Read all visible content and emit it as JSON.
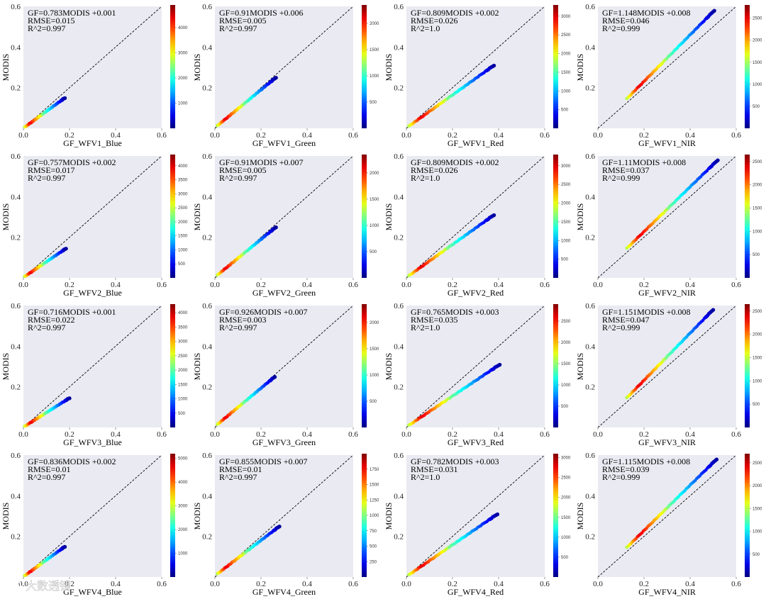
{
  "chart_data": [
    {
      "type": "scatter",
      "xlabel": "GF_WFV1_Blue",
      "ylabel": "MODIS",
      "xlim": [
        0,
        0.6
      ],
      "ylim": [
        0,
        0.6
      ],
      "xticks": [
        "0.0",
        "0.2",
        "0.4",
        "0.6"
      ],
      "yticks": [
        "0.2",
        "0.4",
        "0.6"
      ],
      "annotation": [
        "GF=0.783MODIS +0.001",
        "RMSE=0.015",
        "R^2=0.997"
      ],
      "fit": {
        "x_start": 0.005,
        "x_end": 0.18,
        "y_start": 0.005,
        "y_end": 0.15
      },
      "colorbar": {
        "ticks": [
          1000,
          2000,
          3000,
          4000
        ],
        "max": 4900
      }
    },
    {
      "type": "scatter",
      "xlabel": "GF_WFV1_Green",
      "ylabel": "MODIS",
      "xlim": [
        0,
        0.6
      ],
      "ylim": [
        0,
        0.6
      ],
      "xticks": [
        "0.0",
        "0.2",
        "0.4",
        "0.6"
      ],
      "yticks": [
        "0.2",
        "0.4",
        "0.6"
      ],
      "annotation": [
        "GF=0.91MODIS +0.006",
        "RMSE=0.005",
        "R^2=0.997"
      ],
      "fit": {
        "x_start": 0.01,
        "x_end": 0.265,
        "y_start": 0.012,
        "y_end": 0.25
      },
      "colorbar": {
        "ticks": [
          500,
          1000,
          1500,
          2000
        ],
        "max": 2350
      }
    },
    {
      "type": "scatter",
      "xlabel": "GF_WFV1_Red",
      "ylabel": "MODIS",
      "xlim": [
        0,
        0.6
      ],
      "ylim": [
        0,
        0.6
      ],
      "xticks": [
        "0.0",
        "0.2",
        "0.4",
        "0.6"
      ],
      "yticks": [
        "0.2",
        "0.4",
        "0.6"
      ],
      "annotation": [
        "GF=0.809MODIS +0.002",
        "RMSE=0.026",
        "R^2=1.0"
      ],
      "fit": {
        "x_start": 0.01,
        "x_end": 0.38,
        "y_start": 0.01,
        "y_end": 0.31
      },
      "colorbar": {
        "ticks": [
          500,
          1000,
          1500,
          2000,
          2500,
          3000
        ],
        "max": 3300
      }
    },
    {
      "type": "scatter",
      "xlabel": "GF_WFV1_NIR",
      "ylabel": "MODIS",
      "xlim": [
        0,
        0.6
      ],
      "ylim": [
        0,
        0.6
      ],
      "xticks": [
        "0.0",
        "0.2",
        "0.4",
        "0.6"
      ],
      "yticks": [
        "0.2",
        "0.4",
        "0.6"
      ],
      "annotation": [
        "GF=1.148MODIS +0.008",
        "RMSE=0.046",
        "R^2=0.999"
      ],
      "fit": {
        "x_start": 0.125,
        "x_end": 0.505,
        "y_start": 0.145,
        "y_end": 0.58
      },
      "colorbar": {
        "ticks": [
          500,
          1000,
          1500,
          2000,
          2500
        ],
        "max": 2800
      }
    },
    {
      "type": "scatter",
      "xlabel": "GF_WFV2_Blue",
      "ylabel": "MODIS",
      "xlim": [
        0,
        0.6
      ],
      "ylim": [
        0,
        0.6
      ],
      "xticks": [
        "0.0",
        "0.2",
        "0.4",
        "0.6"
      ],
      "yticks": [
        "0.2",
        "0.4",
        "0.6"
      ],
      "annotation": [
        "GF=0.757MODIS +0.002",
        "RMSE=0.017",
        "R^2=0.997"
      ],
      "fit": {
        "x_start": 0.005,
        "x_end": 0.185,
        "y_start": 0.006,
        "y_end": 0.145
      },
      "colorbar": {
        "ticks": [
          500,
          1000,
          1500,
          2000,
          2500,
          3000,
          3500,
          4000
        ],
        "max": 4400
      }
    },
    {
      "type": "scatter",
      "xlabel": "GF_WFV2_Green",
      "ylabel": "MODIS",
      "xlim": [
        0,
        0.6
      ],
      "ylim": [
        0,
        0.6
      ],
      "xticks": [
        "0.0",
        "0.2",
        "0.4",
        "0.6"
      ],
      "yticks": [
        "0.2",
        "0.4",
        "0.6"
      ],
      "annotation": [
        "GF=0.91MODIS +0.007",
        "RMSE=0.005",
        "R^2=0.997"
      ],
      "fit": {
        "x_start": 0.01,
        "x_end": 0.265,
        "y_start": 0.013,
        "y_end": 0.25
      },
      "colorbar": {
        "ticks": [
          500,
          1000,
          1500,
          2000
        ],
        "max": 2350
      }
    },
    {
      "type": "scatter",
      "xlabel": "GF_WFV2_Red",
      "ylabel": "MODIS",
      "xlim": [
        0,
        0.6
      ],
      "ylim": [
        0,
        0.6
      ],
      "xticks": [
        "0.0",
        "0.2",
        "0.4",
        "0.6"
      ],
      "yticks": [
        "0.2",
        "0.4",
        "0.6"
      ],
      "annotation": [
        "GF=0.809MODIS +0.002",
        "RMSE=0.026",
        "R^2=1.0"
      ],
      "fit": {
        "x_start": 0.01,
        "x_end": 0.38,
        "y_start": 0.01,
        "y_end": 0.31
      },
      "colorbar": {
        "ticks": [
          500,
          1000,
          1500,
          2000,
          2500,
          3000
        ],
        "max": 3300
      }
    },
    {
      "type": "scatter",
      "xlabel": "GF_WFV2_NIR",
      "ylabel": "MODIS",
      "xlim": [
        0,
        0.6
      ],
      "ylim": [
        0,
        0.6
      ],
      "xticks": [
        "0.0",
        "0.2",
        "0.4",
        "0.6"
      ],
      "yticks": [
        "0.2",
        "0.4",
        "0.6"
      ],
      "annotation": [
        "GF=1.11MODIS +0.008",
        "RMSE=0.037",
        "R^2=0.999"
      ],
      "fit": {
        "x_start": 0.125,
        "x_end": 0.52,
        "y_start": 0.145,
        "y_end": 0.58
      },
      "colorbar": {
        "ticks": [
          500,
          1000,
          1500,
          2000,
          2500
        ],
        "max": 2650
      }
    },
    {
      "type": "scatter",
      "xlabel": "GF_WFV3_Blue",
      "ylabel": "MODIS",
      "xlim": [
        0,
        0.6
      ],
      "ylim": [
        0,
        0.6
      ],
      "xticks": [
        "0.0",
        "0.2",
        "0.4",
        "0.6"
      ],
      "yticks": [
        "0.2",
        "0.4",
        "0.6"
      ],
      "annotation": [
        "GF=0.716MODIS +0.001",
        "RMSE=0.022",
        "R^2=0.997"
      ],
      "fit": {
        "x_start": 0.005,
        "x_end": 0.2,
        "y_start": 0.005,
        "y_end": 0.145
      },
      "colorbar": {
        "ticks": [
          500,
          1000,
          1500,
          2000,
          2500,
          3000,
          3500,
          4000
        ],
        "max": 4300
      }
    },
    {
      "type": "scatter",
      "xlabel": "GF_WFV3_Green",
      "ylabel": "MODIS",
      "xlim": [
        0,
        0.6
      ],
      "ylim": [
        0,
        0.6
      ],
      "xticks": [
        "0.0",
        "0.2",
        "0.4",
        "0.6"
      ],
      "yticks": [
        "0.2",
        "0.4",
        "0.6"
      ],
      "annotation": [
        "GF=0.926MODIS +0.007",
        "RMSE=0.003",
        "R^2=0.997"
      ],
      "fit": {
        "x_start": 0.01,
        "x_end": 0.26,
        "y_start": 0.014,
        "y_end": 0.25
      },
      "colorbar": {
        "ticks": [
          500,
          1000,
          1500,
          2000
        ],
        "max": 2350
      }
    },
    {
      "type": "scatter",
      "xlabel": "GF_WFV3_Red",
      "ylabel": "MODIS",
      "xlim": [
        0,
        0.6
      ],
      "ylim": [
        0,
        0.6
      ],
      "xticks": [
        "0.0",
        "0.2",
        "0.4",
        "0.6"
      ],
      "yticks": [
        "0.2",
        "0.4",
        "0.6"
      ],
      "annotation": [
        "GF=0.765MODIS +0.003",
        "RMSE=0.035",
        "R^2=1.0"
      ],
      "fit": {
        "x_start": 0.01,
        "x_end": 0.405,
        "y_start": 0.01,
        "y_end": 0.31
      },
      "colorbar": {
        "ticks": [
          500,
          1000,
          1500,
          2000,
          2500
        ],
        "max": 2900
      }
    },
    {
      "type": "scatter",
      "xlabel": "GF_WFV3_NIR",
      "ylabel": "MODIS",
      "xlim": [
        0,
        0.6
      ],
      "ylim": [
        0,
        0.6
      ],
      "xticks": [
        "0.0",
        "0.2",
        "0.4",
        "0.6"
      ],
      "yticks": [
        "0.2",
        "0.4",
        "0.6"
      ],
      "annotation": [
        "GF=1.151MODIS +0.008",
        "RMSE=0.047",
        "R^2=0.999"
      ],
      "fit": {
        "x_start": 0.125,
        "x_end": 0.5,
        "y_start": 0.145,
        "y_end": 0.58
      },
      "colorbar": {
        "ticks": [
          500,
          1000,
          1500,
          2000,
          2500
        ],
        "max": 2650
      }
    },
    {
      "type": "scatter",
      "xlabel": "GF_WFV4_Blue",
      "ylabel": "MODIS",
      "xlim": [
        0,
        0.6
      ],
      "ylim": [
        0,
        0.6
      ],
      "xticks": [
        "0.0",
        "0.2",
        "0.4",
        "0.6"
      ],
      "yticks": [
        "0.2",
        "0.4",
        "0.6"
      ],
      "annotation": [
        "GF=0.836MODIS +0.002",
        "RMSE=0.01",
        "R^2=0.997"
      ],
      "fit": {
        "x_start": 0.005,
        "x_end": 0.18,
        "y_start": 0.006,
        "y_end": 0.15
      },
      "colorbar": {
        "ticks": [
          1000,
          2000,
          3000,
          4000,
          5000
        ],
        "max": 5200
      }
    },
    {
      "type": "scatter",
      "xlabel": "GF_WFV4_Green",
      "ylabel": "MODIS",
      "xlim": [
        0,
        0.6
      ],
      "ylim": [
        0,
        0.6
      ],
      "xticks": [
        "0.0",
        "0.2",
        "0.4",
        "0.6"
      ],
      "yticks": [
        "0.2",
        "0.4",
        "0.6"
      ],
      "annotation": [
        "GF=0.855MODIS +0.007",
        "RMSE=0.01",
        "R^2=0.997"
      ],
      "fit": {
        "x_start": 0.01,
        "x_end": 0.28,
        "y_start": 0.015,
        "y_end": 0.25
      },
      "colorbar": {
        "ticks": [
          250,
          500,
          750,
          1000,
          1250,
          1500,
          1750
        ],
        "max": 2000
      }
    },
    {
      "type": "scatter",
      "xlabel": "GF_WFV4_Red",
      "ylabel": "MODIS",
      "xlim": [
        0,
        0.6
      ],
      "ylim": [
        0,
        0.6
      ],
      "xticks": [
        "0.0",
        "0.2",
        "0.4",
        "0.6"
      ],
      "yticks": [
        "0.2",
        "0.4",
        "0.6"
      ],
      "annotation": [
        "GF=0.782MODIS +0.003",
        "RMSE=0.031",
        "R^2=1.0"
      ],
      "fit": {
        "x_start": 0.01,
        "x_end": 0.395,
        "y_start": 0.01,
        "y_end": 0.31
      },
      "colorbar": {
        "ticks": [
          500,
          1000,
          1500,
          2000,
          2500,
          3000
        ],
        "max": 3100
      }
    },
    {
      "type": "scatter",
      "xlabel": "GF_WFV4_NIR",
      "ylabel": "MODIS",
      "xlim": [
        0,
        0.6
      ],
      "ylim": [
        0,
        0.6
      ],
      "xticks": [
        "0.0",
        "0.2",
        "0.4",
        "0.6"
      ],
      "yticks": [
        "0.2",
        "0.4",
        "0.6"
      ],
      "annotation": [
        "GF=1.115MODIS +0.008",
        "RMSE=0.039",
        "R^2=0.999"
      ],
      "fit": {
        "x_start": 0.125,
        "x_end": 0.515,
        "y_start": 0.145,
        "y_end": 0.58
      },
      "colorbar": {
        "ticks": [
          500,
          1000,
          1500,
          2000,
          2500
        ],
        "max": 2700
      }
    }
  ],
  "watermark": {
    "text": "大数透镜"
  },
  "colors": {
    "plot_bg": "#eaeaf2",
    "identity_line": "#000000"
  }
}
